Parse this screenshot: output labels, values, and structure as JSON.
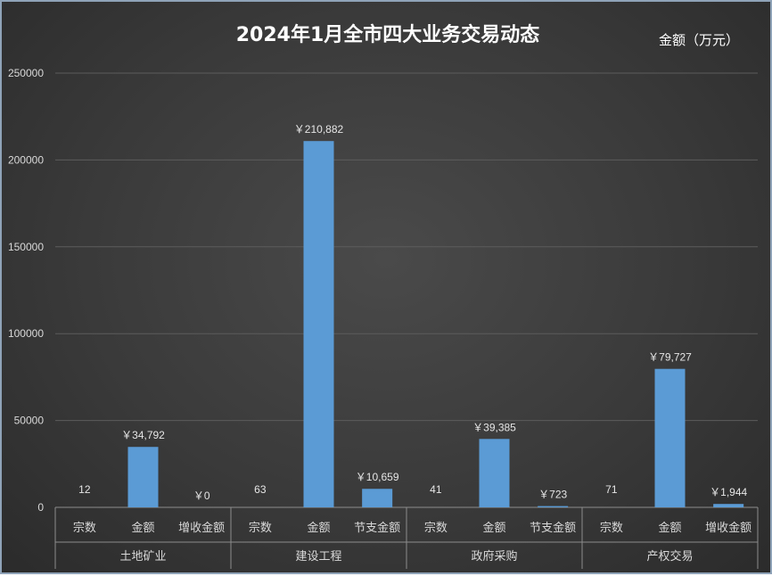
{
  "chart_data": {
    "type": "bar",
    "title": "2024年1月全市四大业务交易动态",
    "unit_label": "金额（万元）",
    "ylim": [
      0,
      250000
    ],
    "yticks": [
      "0",
      "50000",
      "100000",
      "150000",
      "200000",
      "250000"
    ],
    "grid": true,
    "bar_color": "#5b9bd5",
    "groups": [
      {
        "name": "土地矿业",
        "items": [
          {
            "label": "宗数",
            "value": 12,
            "data_label": "12",
            "bar": false
          },
          {
            "label": "金额",
            "value": 34792,
            "data_label": "￥34,792",
            "bar": true
          },
          {
            "label": "增收金额",
            "value": 0,
            "data_label": "￥0",
            "bar": true
          }
        ]
      },
      {
        "name": "建设工程",
        "items": [
          {
            "label": "宗数",
            "value": 63,
            "data_label": "63",
            "bar": false
          },
          {
            "label": "金额",
            "value": 210882,
            "data_label": "￥210,882",
            "bar": true
          },
          {
            "label": "节支金额",
            "value": 10659,
            "data_label": "￥10,659",
            "bar": true
          }
        ]
      },
      {
        "name": "政府采购",
        "items": [
          {
            "label": "宗数",
            "value": 41,
            "data_label": "41",
            "bar": false
          },
          {
            "label": "金额",
            "value": 39385,
            "data_label": "￥39,385",
            "bar": true
          },
          {
            "label": "节支金额",
            "value": 723,
            "data_label": "￥723",
            "bar": true
          }
        ]
      },
      {
        "name": "产权交易",
        "items": [
          {
            "label": "宗数",
            "value": 71,
            "data_label": "71",
            "bar": false
          },
          {
            "label": "金额",
            "value": 79727,
            "data_label": "￥79,727",
            "bar": true
          },
          {
            "label": "增收金额",
            "value": 1944,
            "data_label": "￥1,944",
            "bar": true
          }
        ]
      }
    ]
  }
}
